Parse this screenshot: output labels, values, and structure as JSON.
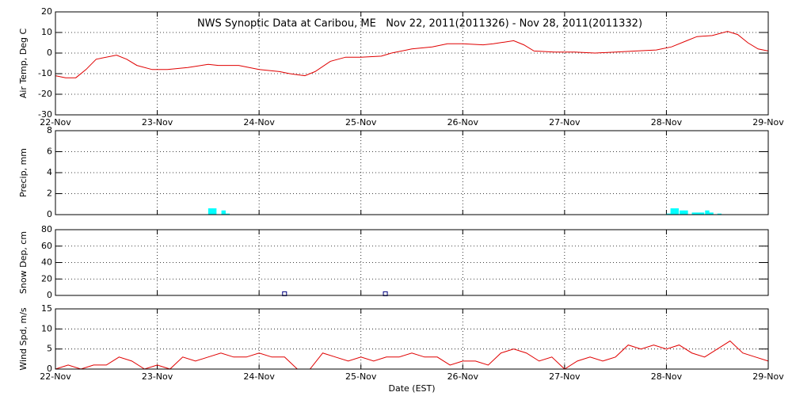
{
  "chart_data": [
    {
      "type": "line",
      "title": "NWS Synoptic Data at Caribou, ME   Nov 22, 2011(2011326) - Nov 28, 2011(2011332)",
      "ylabel": "Air Temp, Deg C",
      "ylim": [
        -30,
        20
      ],
      "yticks": [
        -30,
        -20,
        -10,
        0,
        10,
        20
      ],
      "xlim": [
        0,
        7
      ],
      "xticks": [
        {
          "value": 0,
          "label": "22-Nov"
        },
        {
          "value": 1,
          "label": "23-Nov"
        },
        {
          "value": 2,
          "label": "24-Nov"
        },
        {
          "value": 3,
          "label": "25-Nov"
        },
        {
          "value": 4,
          "label": "26-Nov"
        },
        {
          "value": 5,
          "label": "27-Nov"
        },
        {
          "value": 6,
          "label": "28-Nov"
        },
        {
          "value": 7,
          "label": "29-Nov"
        }
      ],
      "grid": true,
      "series": [
        {
          "color": "#e00000",
          "x": [
            0,
            0.1,
            0.2,
            0.3,
            0.4,
            0.6,
            0.7,
            0.8,
            0.95,
            1.1,
            1.3,
            1.5,
            1.6,
            1.8,
            2.0,
            2.2,
            2.3,
            2.45,
            2.55,
            2.7,
            2.85,
            3.0,
            3.2,
            3.3,
            3.5,
            3.7,
            3.85,
            4.0,
            4.2,
            4.3,
            4.5,
            4.6,
            4.7,
            4.9,
            5.1,
            5.3,
            5.5,
            5.7,
            5.9,
            6.05,
            6.2,
            6.3,
            6.45,
            6.6,
            6.7,
            6.8,
            6.9,
            7.0
          ],
          "values": [
            -11,
            -12,
            -12,
            -8,
            -3,
            -1,
            -3,
            -6,
            -8,
            -8,
            -7,
            -5.5,
            -6,
            -6,
            -8,
            -9,
            -10,
            -11,
            -9,
            -4,
            -2,
            -2,
            -1.5,
            0,
            2,
            3,
            4.5,
            4.5,
            4,
            4.5,
            6,
            4,
            1,
            0.5,
            0.5,
            0,
            0.5,
            1,
            1.5,
            3,
            6,
            8,
            8.5,
            10.5,
            9,
            5,
            2,
            1
          ]
        }
      ]
    },
    {
      "type": "bar",
      "ylabel": "Precip, mm",
      "ylim": [
        0,
        8
      ],
      "yticks": [
        0,
        2,
        4,
        6,
        8
      ],
      "xlim": [
        0,
        7
      ],
      "xticks": [
        0,
        1,
        2,
        3,
        4,
        5,
        6,
        7
      ],
      "grid": true,
      "series": [
        {
          "color": "#00ffff",
          "x": [
            1.5,
            1.54,
            1.63,
            1.67,
            6.0,
            6.04,
            6.08,
            6.13,
            6.17,
            6.25,
            6.29,
            6.33,
            6.38,
            6.42,
            6.5
          ],
          "values": [
            0.6,
            0.6,
            0.4,
            0.1,
            0.1,
            0.6,
            0.6,
            0.4,
            0.4,
            0.2,
            0.2,
            0.2,
            0.4,
            0.2,
            0.1
          ]
        }
      ]
    },
    {
      "type": "scatter",
      "ylabel": "Snow Dep, cm",
      "ylim": [
        0,
        80
      ],
      "yticks": [
        0,
        20,
        40,
        60,
        80
      ],
      "xlim": [
        0,
        7
      ],
      "xticks": [
        0,
        1,
        2,
        3,
        4,
        5,
        6,
        7
      ],
      "grid": true,
      "series": [
        {
          "color": "#000080",
          "x": [
            2.25,
            3.24
          ],
          "values": [
            2,
            2
          ]
        }
      ]
    },
    {
      "type": "line",
      "ylabel": "Wind Spd, m/s",
      "xlabel": "Date (EST)",
      "ylim": [
        0,
        15
      ],
      "yticks": [
        0,
        5,
        10,
        15
      ],
      "xlim": [
        0,
        7
      ],
      "xticks": [
        {
          "value": 0,
          "label": "22-Nov"
        },
        {
          "value": 1,
          "label": "23-Nov"
        },
        {
          "value": 2,
          "label": "24-Nov"
        },
        {
          "value": 3,
          "label": "25-Nov"
        },
        {
          "value": 4,
          "label": "26-Nov"
        },
        {
          "value": 5,
          "label": "27-Nov"
        },
        {
          "value": 6,
          "label": "28-Nov"
        },
        {
          "value": 7,
          "label": "29-Nov"
        }
      ],
      "grid": true,
      "series": [
        {
          "color": "#e00000",
          "x": [
            0,
            0.125,
            0.25,
            0.375,
            0.5,
            0.625,
            0.75,
            0.875,
            1.0,
            1.125,
            1.25,
            1.375,
            1.5,
            1.625,
            1.75,
            1.875,
            2.0,
            2.125,
            2.25,
            2.375,
            2.5,
            2.625,
            2.75,
            2.875,
            3.0,
            3.125,
            3.25,
            3.375,
            3.5,
            3.625,
            3.75,
            3.875,
            4.0,
            4.125,
            4.25,
            4.375,
            4.5,
            4.625,
            4.75,
            4.875,
            5.0,
            5.125,
            5.25,
            5.375,
            5.5,
            5.625,
            5.75,
            5.875,
            6.0,
            6.125,
            6.25,
            6.375,
            6.5,
            6.625,
            6.75,
            6.875,
            7.0
          ],
          "values": [
            0,
            1,
            0,
            1,
            1,
            3,
            2,
            0,
            1,
            0,
            3,
            2,
            3,
            4,
            3,
            3,
            4,
            3,
            3,
            0,
            0,
            4,
            3,
            2,
            3,
            2,
            3,
            3,
            4,
            3,
            3,
            1,
            2,
            2,
            1,
            4,
            5,
            4,
            2,
            3,
            0,
            2,
            3,
            2,
            3,
            6,
            5,
            6,
            5,
            6,
            4,
            3,
            5,
            7,
            4,
            3,
            2
          ]
        }
      ]
    }
  ]
}
